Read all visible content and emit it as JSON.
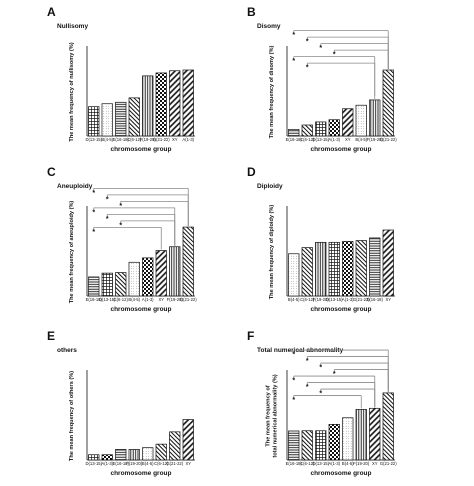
{
  "colors": {
    "ink": "#111111",
    "bracket": "#8a8a8a",
    "background": "#ffffff"
  },
  "chart_data": [
    {
      "panel": "A",
      "type": "bar",
      "title": "Nullisomy",
      "xlabel": "chromosome group",
      "ylabel": "The mean frequency of nullisomy  (%)",
      "categories": [
        "D(13-15)",
        "B(4-5)",
        "E(16-18)",
        "C(6-12)",
        "F(19-20)",
        "G(21-22)",
        "XY",
        "A(1-3)"
      ],
      "values": [
        0.4,
        0.44,
        0.46,
        0.52,
        0.82,
        0.86,
        0.89,
        0.9
      ],
      "ylim": [
        0,
        1.2
      ],
      "patterns": [
        "grid",
        "dots",
        "hlines",
        "diag-dense",
        "vlines",
        "checks",
        "diag",
        "diag"
      ],
      "significance": [],
      "grid": false
    },
    {
      "panel": "B",
      "type": "bar",
      "title": "Disomy",
      "xlabel": "chromosome group",
      "ylabel": "The mean frequency of disomy  (%)",
      "categories": [
        "E(16-18)",
        "C(6-12)",
        "D(13-15)",
        "A(1-3)",
        "XY",
        "B(4-5)",
        "F(19-20)",
        "G(21-22)"
      ],
      "values": [
        0.15,
        0.25,
        0.32,
        0.37,
        0.62,
        0.7,
        0.82,
        1.5
      ],
      "ylim": [
        0,
        2.0
      ],
      "patterns": [
        "hlines",
        "diag-dense",
        "grid",
        "checks",
        "diag",
        "dots",
        "vlines",
        "diag-dense"
      ],
      "significance": [
        {
          "label": "*",
          "from": 0,
          "to": 7
        },
        {
          "label": "*",
          "from": 1,
          "to": 7
        },
        {
          "label": "*",
          "from": 2,
          "to": 7
        },
        {
          "label": "*",
          "from": 3,
          "to": 7
        },
        {
          "label": "*",
          "from": 0,
          "to": 6
        },
        {
          "label": "*",
          "from": 1,
          "to": 6
        }
      ],
      "grid": false
    },
    {
      "panel": "C",
      "type": "bar",
      "title": "Aneuploidy",
      "xlabel": "chromosome group",
      "ylabel": "The mean frequency of aneuploidy (%)",
      "categories": [
        "E(16-18)",
        "D(13-15)",
        "C(6-12)",
        "B(4-5)",
        "A(1-3)",
        "XY",
        "F(19-20)",
        "G(21-22)"
      ],
      "values": [
        0.65,
        0.78,
        0.8,
        1.15,
        1.3,
        1.55,
        1.68,
        2.35
      ],
      "ylim": [
        0,
        3.0
      ],
      "patterns": [
        "hlines",
        "grid",
        "diag-dense",
        "dots",
        "checks",
        "diag",
        "vlines",
        "diag-dense"
      ],
      "significance": [
        {
          "label": "*",
          "from": 0,
          "to": 7
        },
        {
          "label": "*",
          "from": 1,
          "to": 7
        },
        {
          "label": "*",
          "from": 2,
          "to": 7
        },
        {
          "label": "*",
          "from": 0,
          "to": 6
        },
        {
          "label": "*",
          "from": 1,
          "to": 6
        },
        {
          "label": "*",
          "from": 2,
          "to": 6
        },
        {
          "label": "*",
          "from": 0,
          "to": 5
        }
      ],
      "grid": false
    },
    {
      "panel": "D",
      "type": "bar",
      "title": "Diploidy",
      "xlabel": "chromosome group",
      "ylabel": "The mean frequency of diploidy  (%)",
      "categories": [
        "B(4-5)",
        "C(6-12)",
        "F(19-20)",
        "D(13-15)",
        "A(1-3)",
        "G(21-22)",
        "E(16-18)",
        "XY"
      ],
      "values": [
        0.48,
        0.55,
        0.61,
        0.61,
        0.62,
        0.63,
        0.66,
        0.75
      ],
      "ylim": [
        0,
        1.0
      ],
      "patterns": [
        "dots",
        "diag-dense",
        "vlines",
        "grid",
        "checks",
        "diag-dense",
        "hlines",
        "diag"
      ],
      "significance": [],
      "grid": false
    },
    {
      "panel": "E",
      "type": "bar",
      "title": "others",
      "xlabel": "chromosome group",
      "ylabel": "The mean frequency of others (%)",
      "categories": [
        "D(13-15)",
        "A(1-3)",
        "E(16-18)",
        "F(19-20)",
        "B(4-5)",
        "C(6-12)",
        "G(21-22)",
        "XY"
      ],
      "values": [
        0.015,
        0.015,
        0.03,
        0.03,
        0.035,
        0.045,
        0.08,
        0.115
      ],
      "ylim": [
        0,
        0.25
      ],
      "patterns": [
        "grid",
        "checks",
        "hlines",
        "vlines",
        "dots",
        "diag-dense",
        "diag-dense",
        "diag"
      ],
      "significance": [],
      "grid": false
    },
    {
      "panel": "F",
      "type": "bar",
      "title": "Total numerical abnormality",
      "xlabel": "chromosome group",
      "ylabel": "The mean frequency of\ntotal numerical abnormality (%)",
      "categories": [
        "E(16-18)",
        "C(6-12)",
        "D(13-15)",
        "A(1-3)",
        "B(4-5)",
        "F(19-20)",
        "XY",
        "G(21-22)"
      ],
      "values": [
        1.32,
        1.33,
        1.33,
        1.62,
        1.92,
        2.3,
        2.35,
        3.05
      ],
      "ylim": [
        0,
        4.0
      ],
      "patterns": [
        "hlines",
        "diag-dense",
        "grid",
        "checks",
        "dots",
        "vlines",
        "diag",
        "diag-dense"
      ],
      "significance": [
        {
          "label": "*",
          "from": 0,
          "to": 7
        },
        {
          "label": "*",
          "from": 1,
          "to": 7
        },
        {
          "label": "*",
          "from": 2,
          "to": 7
        },
        {
          "label": "*",
          "from": 3,
          "to": 7
        },
        {
          "label": "*",
          "from": 0,
          "to": 6
        },
        {
          "label": "*",
          "from": 1,
          "to": 6
        },
        {
          "label": "*",
          "from": 2,
          "to": 6
        },
        {
          "label": "*",
          "from": 0,
          "to": 5
        }
      ],
      "grid": false
    }
  ]
}
